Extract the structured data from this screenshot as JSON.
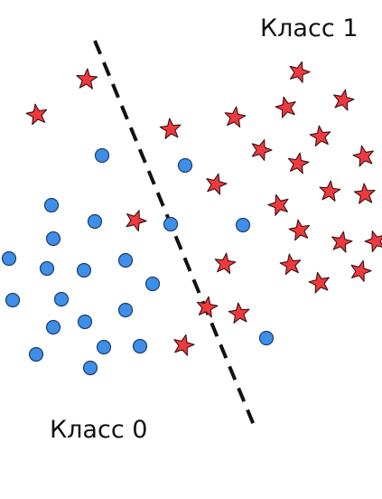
{
  "labels": {
    "class1": "Класс 1",
    "class0": "Класс 0"
  },
  "legend_marks": {
    "class1_marker": "star",
    "class0_marker": "circle"
  },
  "colors": {
    "star_fill": "#ee3a3f",
    "star_stroke": "#3a1010",
    "circle_fill": "#3f8ee8",
    "circle_stroke": "#1b3f6f",
    "boundary": "#111111",
    "background": "#ffffff"
  }
}
